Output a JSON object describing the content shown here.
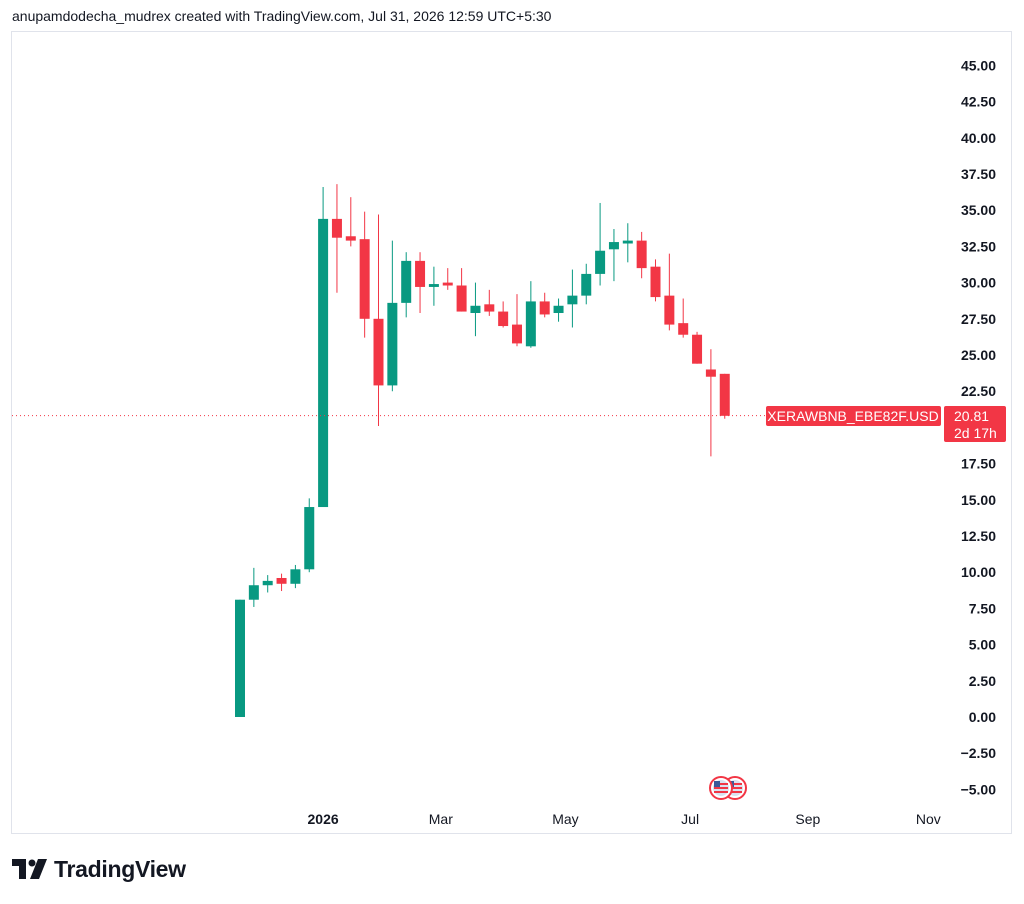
{
  "header": {
    "attribution": "anupamdodecha_mudrex created with TradingView.com, Jul 31, 2026 12:59 UTC+5:30"
  },
  "branding": {
    "logo_text": "TradingView",
    "logo_icon": "tradingview-logo-icon"
  },
  "colors": {
    "up": "#089981",
    "down": "#f23645",
    "grid": "#e0e3eb",
    "text": "#131722"
  },
  "chart_data": {
    "type": "candlestick",
    "symbol": "XERAWBNB_EBE82F.USD",
    "last_price": "20.81",
    "countdown": "2d 17h",
    "last_value": 20.81,
    "ylim": [
      -5.5,
      47
    ],
    "y_ticks": [
      "45.00",
      "42.50",
      "40.00",
      "37.50",
      "35.00",
      "32.50",
      "30.00",
      "27.50",
      "25.00",
      "22.50",
      "17.50",
      "15.00",
      "12.50",
      "10.00",
      "7.50",
      "5.00",
      "2.50",
      "0.00",
      "−2.50",
      "−5.00"
    ],
    "y_tick_values": [
      45,
      42.5,
      40,
      37.5,
      35,
      32.5,
      30,
      27.5,
      25,
      22.5,
      17.5,
      15,
      12.5,
      10,
      7.5,
      5,
      2.5,
      0,
      -2.5,
      -5
    ],
    "x_ticks": [
      {
        "label": "2026",
        "index": 6,
        "bold": true
      },
      {
        "label": "Mar",
        "index": 14.5,
        "bold": false
      },
      {
        "label": "May",
        "index": 23.5,
        "bold": false
      },
      {
        "label": "Jul",
        "index": 32.5,
        "bold": false
      },
      {
        "label": "Sep",
        "index": 41,
        "bold": false
      },
      {
        "label": "Nov",
        "index": 49.7,
        "bold": false
      }
    ],
    "event_icons": [
      "us-flag-icon",
      "us-flag-icon"
    ],
    "candles": [
      {
        "o": 0.0,
        "h": 8.1,
        "l": 0.0,
        "c": 8.1
      },
      {
        "o": 8.1,
        "h": 10.3,
        "l": 7.6,
        "c": 9.1
      },
      {
        "o": 9.1,
        "h": 9.8,
        "l": 8.6,
        "c": 9.4
      },
      {
        "o": 9.6,
        "h": 9.9,
        "l": 8.7,
        "c": 9.2
      },
      {
        "o": 9.2,
        "h": 10.5,
        "l": 8.9,
        "c": 10.2
      },
      {
        "o": 10.2,
        "h": 15.1,
        "l": 10.0,
        "c": 14.5
      },
      {
        "o": 14.5,
        "h": 36.6,
        "l": 14.5,
        "c": 34.4
      },
      {
        "o": 34.4,
        "h": 36.8,
        "l": 29.3,
        "c": 33.1
      },
      {
        "o": 33.2,
        "h": 35.9,
        "l": 32.5,
        "c": 32.9
      },
      {
        "o": 33.0,
        "h": 34.9,
        "l": 26.2,
        "c": 27.5
      },
      {
        "o": 27.5,
        "h": 34.7,
        "l": 20.1,
        "c": 22.9
      },
      {
        "o": 22.9,
        "h": 32.9,
        "l": 22.5,
        "c": 28.6
      },
      {
        "o": 28.6,
        "h": 32.1,
        "l": 27.6,
        "c": 31.5
      },
      {
        "o": 31.5,
        "h": 32.1,
        "l": 27.9,
        "c": 29.7
      },
      {
        "o": 29.7,
        "h": 31.1,
        "l": 28.4,
        "c": 29.9
      },
      {
        "o": 30.0,
        "h": 31.0,
        "l": 29.5,
        "c": 29.8
      },
      {
        "o": 29.8,
        "h": 31.0,
        "l": 28.0,
        "c": 28.0
      },
      {
        "o": 27.9,
        "h": 30.0,
        "l": 26.3,
        "c": 28.4
      },
      {
        "o": 28.5,
        "h": 29.5,
        "l": 27.7,
        "c": 28.0
      },
      {
        "o": 28.0,
        "h": 28.7,
        "l": 26.9,
        "c": 27.0
      },
      {
        "o": 27.1,
        "h": 29.2,
        "l": 25.6,
        "c": 25.8
      },
      {
        "o": 25.6,
        "h": 30.1,
        "l": 25.5,
        "c": 28.7
      },
      {
        "o": 28.7,
        "h": 29.3,
        "l": 27.6,
        "c": 27.8
      },
      {
        "o": 27.9,
        "h": 28.9,
        "l": 27.3,
        "c": 28.4
      },
      {
        "o": 28.5,
        "h": 30.9,
        "l": 26.9,
        "c": 29.1
      },
      {
        "o": 29.1,
        "h": 31.3,
        "l": 28.5,
        "c": 30.6
      },
      {
        "o": 30.6,
        "h": 35.5,
        "l": 29.8,
        "c": 32.2
      },
      {
        "o": 32.3,
        "h": 33.7,
        "l": 30.1,
        "c": 32.8
      },
      {
        "o": 32.7,
        "h": 34.1,
        "l": 31.4,
        "c": 32.9
      },
      {
        "o": 32.9,
        "h": 33.5,
        "l": 30.3,
        "c": 31.0
      },
      {
        "o": 31.1,
        "h": 31.6,
        "l": 28.7,
        "c": 29.0
      },
      {
        "o": 29.1,
        "h": 32.0,
        "l": 26.7,
        "c": 27.1
      },
      {
        "o": 27.2,
        "h": 28.9,
        "l": 26.2,
        "c": 26.4
      },
      {
        "o": 26.4,
        "h": 26.6,
        "l": 24.4,
        "c": 24.4
      },
      {
        "o": 24.0,
        "h": 25.4,
        "l": 18.0,
        "c": 23.5
      },
      {
        "o": 23.7,
        "h": 23.7,
        "l": 20.6,
        "c": 20.8
      }
    ]
  }
}
